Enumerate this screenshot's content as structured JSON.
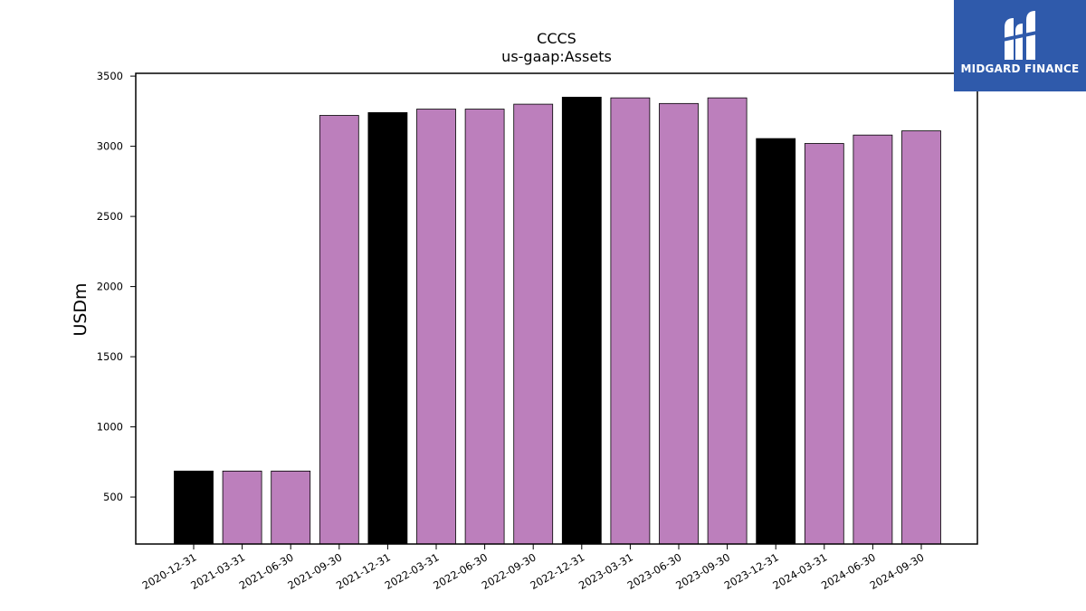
{
  "logo": {
    "text": "MIDGARD FINANCE",
    "background": "#2f5aab"
  },
  "colors": {
    "annual": "#000000",
    "quarterly": "#bc7fbc",
    "bar_edge": "#000000"
  },
  "chart_data": {
    "type": "bar",
    "title": "CCCS",
    "subtitle": "us-gaap:Assets",
    "ylabel": "USDm",
    "xlabel": "",
    "ylim": [
      165,
      3520
    ],
    "yticks": [
      500,
      1000,
      1500,
      2000,
      2500,
      3000,
      3500
    ],
    "grid": false,
    "categories": [
      "2020-12-31",
      "2021-03-31",
      "2021-06-30",
      "2021-09-30",
      "2021-12-31",
      "2022-03-31",
      "2022-06-30",
      "2022-09-30",
      "2022-12-31",
      "2023-03-31",
      "2023-06-30",
      "2023-09-30",
      "2023-12-31",
      "2024-03-31",
      "2024-06-30",
      "2024-09-30"
    ],
    "values": [
      685,
      685,
      685,
      3220,
      3240,
      3265,
      3265,
      3300,
      3350,
      3345,
      3305,
      3345,
      3055,
      3020,
      3080,
      3110
    ],
    "bar_colors": [
      "#000000",
      "#bc7fbc",
      "#bc7fbc",
      "#bc7fbc",
      "#000000",
      "#bc7fbc",
      "#bc7fbc",
      "#bc7fbc",
      "#000000",
      "#bc7fbc",
      "#bc7fbc",
      "#bc7fbc",
      "#000000",
      "#bc7fbc",
      "#bc7fbc",
      "#bc7fbc"
    ]
  }
}
